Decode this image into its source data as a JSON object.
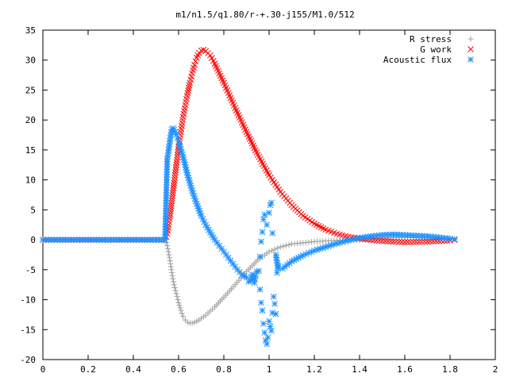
{
  "chart_data": {
    "type": "scatter",
    "title": "m1/n1.5/q1.80/r-+.30-j155/M1.0/512",
    "xlabel": "",
    "ylabel": "",
    "xlim": [
      0,
      2
    ],
    "ylim": [
      -20,
      35
    ],
    "x_ticks": [
      0,
      0.2,
      0.4,
      0.6,
      0.8,
      1,
      1.2,
      1.4,
      1.6,
      1.8,
      2
    ],
    "x_tick_labels": [
      "0",
      "0.2",
      "0.4",
      "0.6",
      "0.8",
      "1",
      "1.2",
      "1.4",
      "1.6",
      "1.8",
      "2"
    ],
    "y_ticks": [
      -20,
      -15,
      -10,
      -5,
      0,
      5,
      10,
      15,
      20,
      25,
      30,
      35
    ],
    "y_tick_labels": [
      "-20",
      "-15",
      "-10",
      "-5",
      "0",
      "5",
      "10",
      "15",
      "20",
      "25",
      "30",
      "35"
    ],
    "grid": false,
    "legend_position": "top-right",
    "series": [
      {
        "name": "R stress",
        "marker": "plus",
        "color": "#a0a0a0",
        "points": [
          [
            0.0,
            0
          ],
          [
            0.1,
            0
          ],
          [
            0.2,
            0
          ],
          [
            0.3,
            0
          ],
          [
            0.4,
            0
          ],
          [
            0.5,
            0
          ],
          [
            0.54,
            0
          ],
          [
            0.55,
            -1
          ],
          [
            0.56,
            -3
          ],
          [
            0.57,
            -5.5
          ],
          [
            0.58,
            -7.5
          ],
          [
            0.59,
            -9
          ],
          [
            0.6,
            -10.5
          ],
          [
            0.61,
            -11.8
          ],
          [
            0.62,
            -12.8
          ],
          [
            0.63,
            -13.4
          ],
          [
            0.64,
            -13.8
          ],
          [
            0.65,
            -13.9
          ],
          [
            0.66,
            -13.9
          ],
          [
            0.67,
            -13.8
          ],
          [
            0.69,
            -13.4
          ],
          [
            0.72,
            -12.6
          ],
          [
            0.76,
            -11.2
          ],
          [
            0.8,
            -9.6
          ],
          [
            0.85,
            -7.5
          ],
          [
            0.9,
            -5.3
          ],
          [
            0.95,
            -3.4
          ],
          [
            1.0,
            -2.0
          ],
          [
            1.05,
            -1.2
          ],
          [
            1.1,
            -0.7
          ],
          [
            1.2,
            -0.3
          ],
          [
            1.3,
            -0.1
          ],
          [
            1.4,
            0
          ],
          [
            1.5,
            0.3
          ],
          [
            1.6,
            0.4
          ],
          [
            1.7,
            0.3
          ],
          [
            1.8,
            0.2
          ],
          [
            1.82,
            0.1
          ]
        ]
      },
      {
        "name": "G work",
        "marker": "cross",
        "color": "#ff0000",
        "points": [
          [
            0.0,
            0
          ],
          [
            0.1,
            0
          ],
          [
            0.2,
            0
          ],
          [
            0.3,
            0
          ],
          [
            0.4,
            0
          ],
          [
            0.5,
            0
          ],
          [
            0.54,
            0
          ],
          [
            0.55,
            1
          ],
          [
            0.56,
            3.5
          ],
          [
            0.57,
            6.5
          ],
          [
            0.58,
            9.5
          ],
          [
            0.59,
            12.5
          ],
          [
            0.6,
            15.5
          ],
          [
            0.61,
            18
          ],
          [
            0.62,
            20.5
          ],
          [
            0.63,
            22.5
          ],
          [
            0.64,
            24.5
          ],
          [
            0.65,
            26.2
          ],
          [
            0.66,
            27.8
          ],
          [
            0.67,
            29.2
          ],
          [
            0.68,
            30.4
          ],
          [
            0.69,
            31.2
          ],
          [
            0.7,
            31.6
          ],
          [
            0.71,
            31.7
          ],
          [
            0.72,
            31.5
          ],
          [
            0.74,
            30.8
          ],
          [
            0.76,
            29.4
          ],
          [
            0.8,
            26.2
          ],
          [
            0.85,
            22
          ],
          [
            0.9,
            18
          ],
          [
            0.95,
            14.2
          ],
          [
            1.0,
            10.8
          ],
          [
            1.05,
            8.0
          ],
          [
            1.1,
            5.8
          ],
          [
            1.15,
            4.0
          ],
          [
            1.2,
            2.7
          ],
          [
            1.25,
            1.7
          ],
          [
            1.3,
            1.0
          ],
          [
            1.35,
            0.5
          ],
          [
            1.4,
            0.2
          ],
          [
            1.5,
            -0.2
          ],
          [
            1.6,
            -0.4
          ],
          [
            1.7,
            -0.3
          ],
          [
            1.8,
            -0.1
          ],
          [
            1.82,
            0
          ]
        ]
      },
      {
        "name": "Acoustic flux",
        "marker": "star",
        "color": "#1e90ff",
        "points": [
          [
            0.0,
            0
          ],
          [
            0.1,
            0
          ],
          [
            0.2,
            0
          ],
          [
            0.3,
            0
          ],
          [
            0.4,
            0
          ],
          [
            0.5,
            0
          ],
          [
            0.54,
            0
          ],
          [
            0.545,
            7
          ],
          [
            0.55,
            13.5
          ],
          [
            0.56,
            16
          ],
          [
            0.565,
            17.5
          ],
          [
            0.57,
            18.4
          ],
          [
            0.575,
            18.6
          ],
          [
            0.58,
            18.4
          ],
          [
            0.59,
            17.6
          ],
          [
            0.6,
            16.4
          ],
          [
            0.62,
            13.8
          ],
          [
            0.64,
            10.8
          ],
          [
            0.66,
            8.2
          ],
          [
            0.68,
            6.0
          ],
          [
            0.7,
            4.0
          ],
          [
            0.72,
            2.5
          ],
          [
            0.74,
            1.2
          ],
          [
            0.76,
            0
          ],
          [
            0.78,
            -1.0
          ],
          [
            0.8,
            -2.0
          ],
          [
            0.82,
            -3.0
          ],
          [
            0.84,
            -4.0
          ],
          [
            0.86,
            -5.0
          ],
          [
            0.88,
            -5.8
          ],
          [
            0.9,
            -6.3
          ],
          [
            0.91,
            -7.0
          ],
          [
            0.92,
            -6.8
          ],
          [
            0.925,
            -5.8
          ],
          [
            0.93,
            -6.5
          ],
          [
            0.935,
            -7.2
          ],
          [
            0.94,
            -6.0
          ],
          [
            0.945,
            -5.3
          ],
          [
            0.955,
            -5.2
          ],
          [
            0.96,
            -8.3
          ],
          [
            0.965,
            -10.5
          ],
          [
            0.97,
            -11.8
          ],
          [
            0.975,
            -14
          ],
          [
            0.98,
            -15.5
          ],
          [
            0.985,
            -16.8
          ],
          [
            0.99,
            -17.4
          ],
          [
            0.995,
            -16.3
          ],
          [
            1.0,
            -13.6
          ],
          [
            1.005,
            -14.5
          ],
          [
            1.01,
            -15.2
          ],
          [
            1.015,
            -12.2
          ],
          [
            1.02,
            -9.5
          ],
          [
            1.025,
            -10.7
          ],
          [
            1.03,
            -12.4
          ],
          [
            1.035,
            -5.5
          ],
          [
            1.04,
            -4.5
          ],
          [
            0.96,
            -2.8
          ],
          [
            0.965,
            -0.3
          ],
          [
            0.97,
            1.3
          ],
          [
            0.975,
            3.4
          ],
          [
            0.98,
            4.2
          ],
          [
            0.99,
            2.5
          ],
          [
            1.0,
            4.5
          ],
          [
            1.005,
            5.8
          ],
          [
            1.01,
            6.2
          ],
          [
            1.015,
            1.1
          ],
          [
            1.03,
            -2.5
          ],
          [
            1.04,
            -4.8
          ],
          [
            1.06,
            -4.8
          ],
          [
            1.08,
            -4.2
          ],
          [
            1.1,
            -3.6
          ],
          [
            1.15,
            -2.6
          ],
          [
            1.2,
            -1.8
          ],
          [
            1.25,
            -1.2
          ],
          [
            1.3,
            -0.6
          ],
          [
            1.35,
            -0.1
          ],
          [
            1.4,
            0.3
          ],
          [
            1.45,
            0.6
          ],
          [
            1.5,
            0.8
          ],
          [
            1.55,
            0.9
          ],
          [
            1.6,
            0.8
          ],
          [
            1.65,
            0.7
          ],
          [
            1.7,
            0.6
          ],
          [
            1.75,
            0.4
          ],
          [
            1.8,
            0.2
          ],
          [
            1.82,
            0.1
          ]
        ]
      }
    ]
  }
}
